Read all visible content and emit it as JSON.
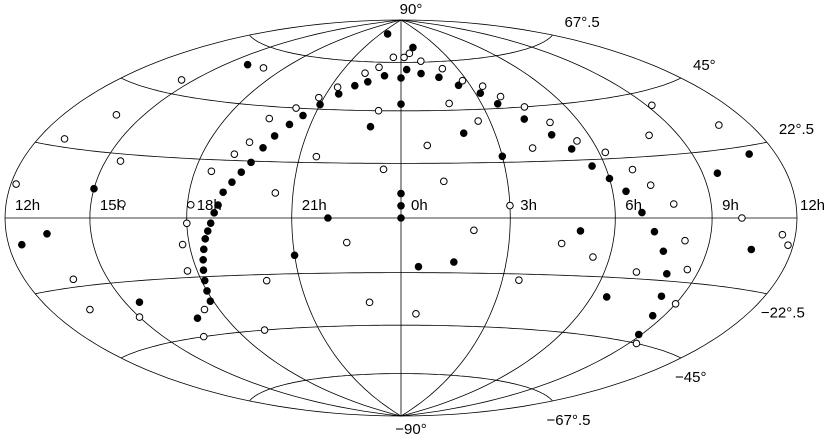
{
  "chart_data": {
    "type": "scatter",
    "projection": "hammer-aitoff",
    "xlim": [
      -12,
      12
    ],
    "ylim": [
      -90,
      90
    ],
    "xticks": [
      {
        "value": -12,
        "label": "12h"
      },
      {
        "value": -9,
        "label": "15h"
      },
      {
        "value": -6,
        "label": "18h"
      },
      {
        "value": -3,
        "label": "21h"
      },
      {
        "value": 0,
        "label": "0h"
      },
      {
        "value": 3,
        "label": "3h"
      },
      {
        "value": 6,
        "label": "6h"
      },
      {
        "value": 9,
        "label": "9h"
      },
      {
        "value": 12,
        "label": "12h"
      }
    ],
    "yticks": [
      {
        "value": 90,
        "label": "90°"
      },
      {
        "value": 67.5,
        "label": "67°.5"
      },
      {
        "value": 45,
        "label": "45°"
      },
      {
        "value": 22.5,
        "label": "22°.5"
      },
      {
        "value": -22.5,
        "label": "−22°.5"
      },
      {
        "value": -45,
        "label": "−45°"
      },
      {
        "value": -67.5,
        "label": "−67°.5"
      },
      {
        "value": -90,
        "label": "−90°"
      }
    ],
    "grid": true,
    "series": [
      {
        "marker": "filled",
        "color": "#000000",
        "x": [
          -6,
          -6.1,
          -5.9,
          -5.8,
          -5.7,
          -5.6,
          -5.5,
          -5.4,
          -5.3,
          -5.2,
          -5.1,
          -5.0,
          -4.8,
          -4.6,
          -4.4,
          -4.2,
          -4.0,
          -3.7,
          -3.4,
          -3.0,
          -2.5,
          -2.0,
          -1.5,
          -0.8,
          0.3,
          1.0,
          1.8,
          2.5,
          3.2,
          3.6,
          4.2,
          4.8,
          5.2,
          5.6,
          6.0,
          6.4,
          6.8,
          7.2,
          7.6,
          8.0,
          8.3,
          8.6,
          8.9,
          -10.5,
          -11.5,
          -9,
          -8.5,
          -7,
          0,
          0,
          0,
          0,
          0,
          0.5,
          1.5,
          3,
          2,
          -1,
          10.5,
          11,
          9.5,
          -3,
          -2,
          5,
          6.5,
          -8,
          -2,
          1
        ],
        "values": [
          -28,
          -32,
          -24,
          -20,
          -16,
          -12,
          -8,
          -5,
          -2,
          2,
          5,
          10,
          14,
          18,
          22,
          28,
          33,
          38,
          42,
          47,
          52,
          56,
          58,
          61,
          64,
          62,
          60,
          56,
          52,
          47,
          40,
          33,
          27,
          20,
          15,
          10,
          2,
          -5,
          -12,
          -20,
          -28,
          -35,
          -42,
          -5,
          -8,
          10,
          -30,
          -38,
          0,
          5,
          10,
          48,
          60,
          -20,
          -18,
          25,
          35,
          38,
          -10,
          20,
          15,
          -15,
          0,
          -5,
          -30,
          60,
          82,
          75
        ]
      },
      {
        "marker": "open",
        "color": "#000000",
        "x": [
          -11.8,
          -11,
          -10.5,
          -10.2,
          -9.5,
          -9,
          -8.5,
          -8,
          -7.5,
          -7,
          -6.5,
          -6.3,
          -6.2,
          -6.0,
          -5.9,
          -5.5,
          -5,
          -4.7,
          -4.5,
          -3.8,
          -3.2,
          -2.7,
          -1.8,
          -1.2,
          -0.5,
          0.2,
          0.6,
          1.2,
          2.2,
          2.8,
          3.5,
          3.9,
          4.5,
          5,
          5.5,
          6.2,
          6.8,
          7.2,
          7.8,
          8.2,
          8.6,
          9.0,
          9.3,
          10,
          10.8,
          11.5,
          11.8,
          9.2,
          8,
          7,
          5.5,
          4.5,
          3.5,
          2,
          1.2,
          0.8,
          -0.5,
          -1.5,
          -2.5,
          -3.5,
          -4,
          -1,
          0.5,
          -10,
          -5,
          3,
          4,
          -0.8,
          1.8,
          2.6
        ],
        "values": [
          10,
          25,
          -30,
          -20,
          50,
          -35,
          20,
          5,
          -45,
          60,
          -35,
          -20,
          -10,
          -2,
          5,
          18,
          25,
          30,
          40,
          45,
          50,
          55,
          62,
          65,
          70,
          70,
          72,
          68,
          64,
          58,
          55,
          50,
          45,
          38,
          30,
          25,
          18,
          12,
          5,
          -8,
          -18,
          -30,
          -45,
          0,
          30,
          -5,
          -8,
          40,
          30,
          -20,
          -15,
          -10,
          -25,
          -5,
          15,
          30,
          20,
          -10,
          25,
          10,
          -25,
          -35,
          -40,
          35,
          -45,
          5,
          28,
          45,
          48,
          40
        ]
      }
    ]
  }
}
